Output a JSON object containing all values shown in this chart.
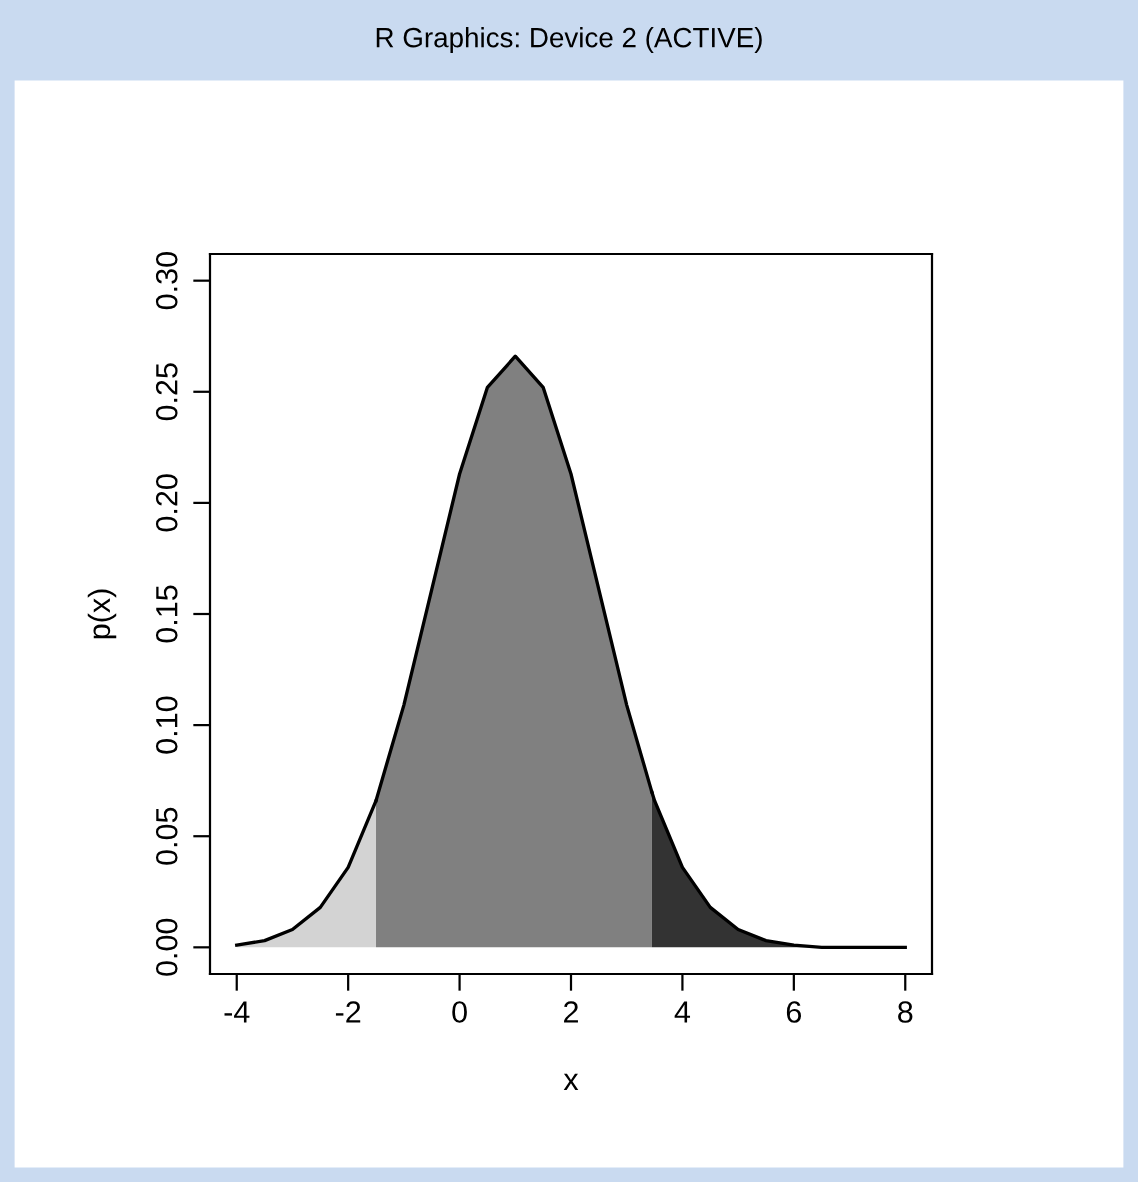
{
  "chart_data": {
    "type": "area",
    "title": "R Graphics: Device 2 (ACTIVE)",
    "xlabel": "x",
    "ylabel": "p(x)",
    "series": [
      {
        "color": "#d3d3d3",
        "x": [
          -4,
          -3.5,
          -3,
          -2.5,
          -2,
          -1.5
        ],
        "values": [
          0.001,
          0.003,
          0.008,
          0.018,
          0.036,
          0.066
        ]
      },
      {
        "color": "#808080",
        "x": [
          -1.5,
          -1,
          -0.5,
          0,
          0.5,
          1,
          1.5,
          2,
          2.5,
          3,
          3.45
        ],
        "values": [
          0.066,
          0.109,
          0.161,
          0.213,
          0.252,
          0.266,
          0.252,
          0.213,
          0.161,
          0.109,
          0.07
        ]
      },
      {
        "color": "#333333",
        "x": [
          3.45,
          3.5,
          4,
          4.5,
          5,
          5.5,
          6,
          6.5,
          7,
          7.5,
          8
        ],
        "values": [
          0.07,
          0.066,
          0.036,
          0.018,
          0.008,
          0.003,
          0.001,
          0,
          0,
          0,
          0
        ]
      }
    ],
    "xlim": [
      -4.48,
      8.48
    ],
    "ylim": [
      -0.012,
      0.312
    ],
    "xticks": [
      -4,
      -2,
      0,
      2,
      4,
      6,
      8
    ],
    "yticks": [
      {
        "value": 0,
        "label": "0.00"
      },
      {
        "value": 0.05,
        "label": "0.05"
      },
      {
        "value": 0.1,
        "label": "0.10"
      },
      {
        "value": 0.15,
        "label": "0.15"
      },
      {
        "value": 0.2,
        "label": "0.20"
      },
      {
        "value": 0.25,
        "label": "0.25"
      },
      {
        "value": 0.3,
        "label": "0.30"
      }
    ],
    "grid": false,
    "legend": false
  }
}
